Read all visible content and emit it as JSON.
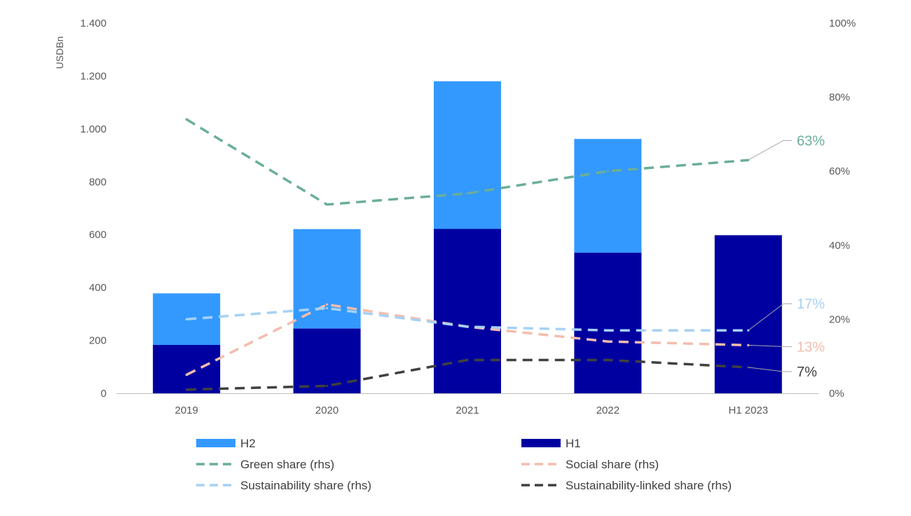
{
  "chart_data": {
    "type": "bar",
    "title": "",
    "categories": [
      "2019",
      "2020",
      "2021",
      "2022",
      "H1 2023"
    ],
    "y_left": {
      "label": "USDBn",
      "ylim": [
        0,
        1400
      ],
      "ticks": [
        0,
        200,
        400,
        600,
        800,
        1000,
        1200,
        1400
      ],
      "tick_labels": [
        "0",
        "200",
        "400",
        "600",
        "800",
        "1.000",
        "1.200",
        "1.400"
      ]
    },
    "y_right": {
      "ylim": [
        0,
        100
      ],
      "ticks": [
        0,
        20,
        40,
        60,
        80,
        100
      ],
      "tick_labels": [
        "0%",
        "20%",
        "40%",
        "60%",
        "80%",
        "100%"
      ]
    },
    "bars_stacked": true,
    "bar_series": [
      {
        "name": "H1",
        "color": "#0000A0",
        "values": [
          183,
          245,
          622,
          532,
          598
        ]
      },
      {
        "name": "H2",
        "color": "#3399FF",
        "values": [
          195,
          376,
          558,
          430,
          0
        ]
      }
    ],
    "line_series": [
      {
        "name": "Green share (rhs)",
        "color": "#6AAE98",
        "axis": "right",
        "values": [
          74,
          51,
          54,
          60,
          63
        ],
        "end_label": "63%"
      },
      {
        "name": "Social share (rhs)",
        "color": "#F4BDAD",
        "axis": "right",
        "values": [
          5,
          24,
          18,
          14,
          13
        ],
        "end_label": "13%"
      },
      {
        "name": "Sustainability share (rhs)",
        "color": "#A6D1F5",
        "axis": "right",
        "values": [
          20,
          23,
          18,
          17,
          17
        ],
        "end_label": "17%"
      },
      {
        "name": "Sustainability-linked share (rhs)",
        "color": "#404040",
        "axis": "right",
        "values": [
          1,
          2,
          9,
          9,
          7
        ],
        "end_label": "7%"
      }
    ],
    "legend": {
      "position": "bottom",
      "items": [
        {
          "name": "H2",
          "kind": "bar",
          "color": "#3399FF"
        },
        {
          "name": "H1",
          "kind": "bar",
          "color": "#0000A0"
        },
        {
          "name": "Green share (rhs)",
          "kind": "line",
          "color": "#6AAE98"
        },
        {
          "name": "Social share (rhs)",
          "kind": "line",
          "color": "#F4BDAD"
        },
        {
          "name": "Sustainability share (rhs)",
          "kind": "line",
          "color": "#A6D1F5"
        },
        {
          "name": "Sustainability-linked share (rhs)",
          "kind": "line",
          "color": "#404040"
        }
      ]
    },
    "grid": false
  }
}
